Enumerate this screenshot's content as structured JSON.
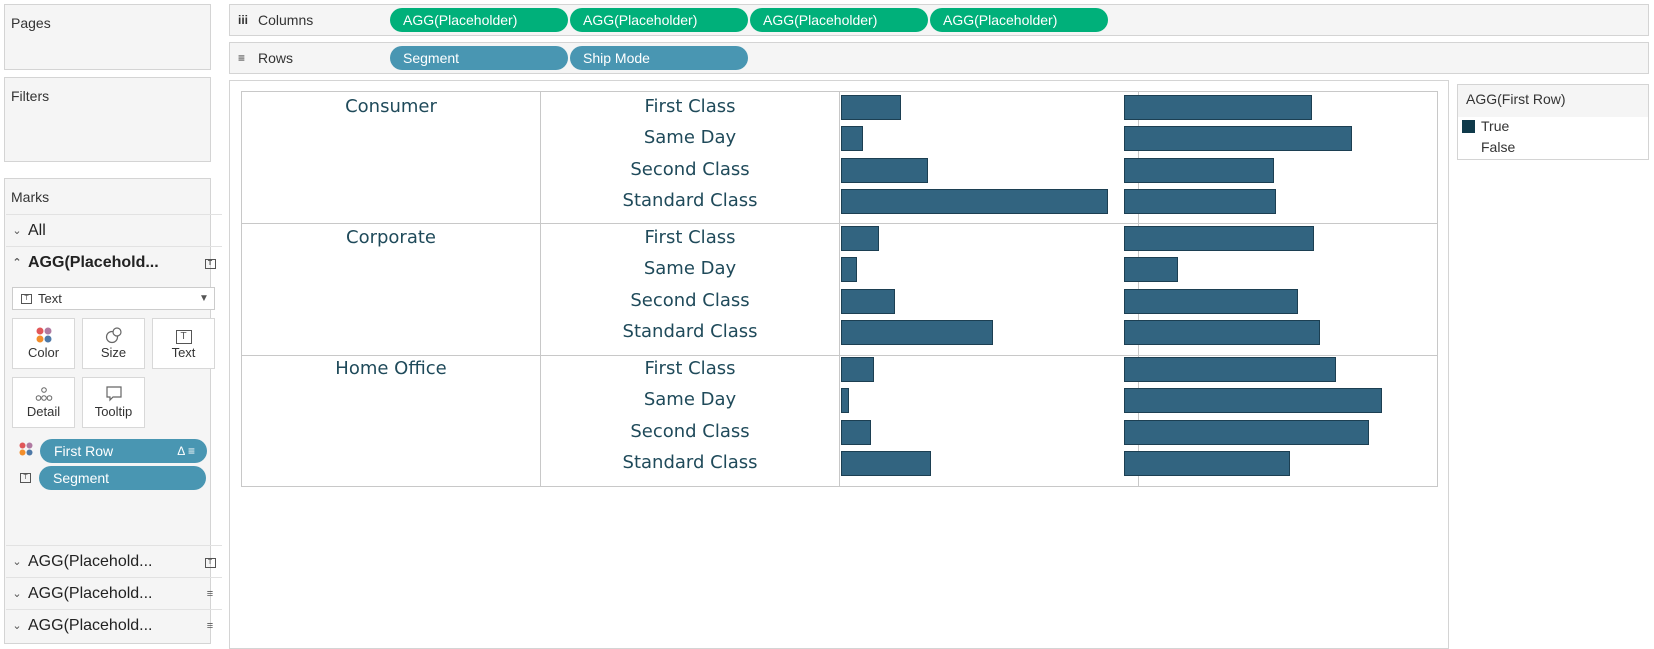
{
  "cards": {
    "pages": "Pages",
    "filters": "Filters",
    "marks": "Marks"
  },
  "shelves": {
    "columns": {
      "label": "Columns",
      "icon": "iii",
      "pills": [
        "AGG(Placeholder)",
        "AGG(Placeholder)",
        "AGG(Placeholder)",
        "AGG(Placeholder)"
      ]
    },
    "rows": {
      "label": "Rows",
      "icon": "rows-icon",
      "pills": [
        "Segment",
        "Ship Mode"
      ]
    }
  },
  "marks": {
    "all": "All",
    "active": "AGG(Placehold...",
    "mark_type": "Text",
    "buttons": {
      "color": "Color",
      "size": "Size",
      "text": "Text",
      "detail": "Detail",
      "tooltip": "Tooltip"
    },
    "fields": [
      "First Row",
      "Segment"
    ],
    "others": [
      "AGG(Placehold...",
      "AGG(Placehold...",
      "AGG(Placehold..."
    ]
  },
  "legend": {
    "title": "AGG(First Row)",
    "items": [
      {
        "label": "True",
        "color": "#0f3a4a"
      },
      {
        "label": "False",
        "color": "#ffffff"
      }
    ]
  },
  "chart_data": {
    "type": "bar",
    "segments": [
      "Consumer",
      "Corporate",
      "Home Office"
    ],
    "ship_modes": [
      "First Class",
      "Same Day",
      "Second Class",
      "Standard Class"
    ],
    "bar_color": "#326480",
    "series": [
      {
        "values": [
          0.22,
          0.08,
          0.32,
          0.98,
          0.14,
          0.06,
          0.2,
          0.56,
          0.12,
          0.03,
          0.11,
          0.33
        ]
      },
      {
        "values": [
          0.69,
          0.84,
          0.55,
          0.56,
          0.7,
          0.2,
          0.64,
          0.72,
          0.78,
          0.95,
          0.9,
          0.61
        ]
      }
    ]
  }
}
